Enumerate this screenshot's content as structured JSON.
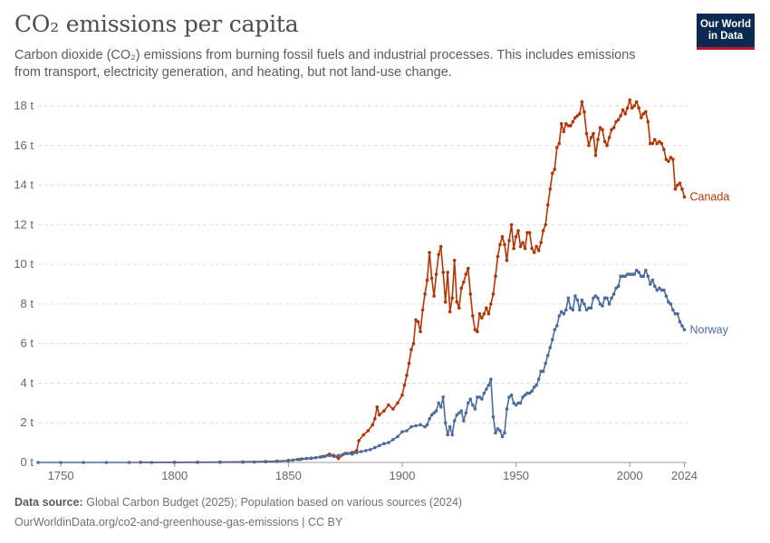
{
  "header": {
    "title": "CO₂ emissions per capita",
    "subtitle": "Carbon dioxide (CO₂) emissions from burning fossil fuels and industrial processes. This includes emissions from transport, electricity generation, and heating, but not land-use change.",
    "logo_line1": "Our World",
    "logo_line2": "in Data"
  },
  "footer": {
    "source_label": "Data source:",
    "source_text": "Global Carbon Budget (2025); Population based on various sources (2024)",
    "url": "OurWorldinData.org/co2-and-greenhouse-gas-emissions | CC BY"
  },
  "colors": {
    "canada": "#b13507",
    "norway": "#4c6a9c",
    "grid": "#dddddd",
    "axis": "#666666"
  },
  "chart_data": {
    "type": "line",
    "xlim": [
      1740,
      2025
    ],
    "ylim": [
      0,
      18
    ],
    "x_ticks": [
      1750,
      1800,
      1850,
      1900,
      1950,
      2000,
      2024
    ],
    "y_ticks": [
      0,
      2,
      4,
      6,
      8,
      10,
      12,
      14,
      16,
      18
    ],
    "y_tick_labels": [
      "0 t",
      "2 t",
      "4 t",
      "6 t",
      "8 t",
      "10 t",
      "12 t",
      "14 t",
      "16 t",
      "18 t"
    ],
    "grid": "horizontal dashed",
    "series": [
      {
        "name": "Canada",
        "color": "#b13507",
        "points": [
          [
            1785,
            0.01
          ],
          [
            1800,
            0.01
          ],
          [
            1810,
            0.015
          ],
          [
            1820,
            0.02
          ],
          [
            1830,
            0.03
          ],
          [
            1840,
            0.05
          ],
          [
            1845,
            0.07
          ],
          [
            1850,
            0.1
          ],
          [
            1855,
            0.15
          ],
          [
            1860,
            0.2
          ],
          [
            1865,
            0.3
          ],
          [
            1868,
            0.42
          ],
          [
            1870,
            0.35
          ],
          [
            1872,
            0.2
          ],
          [
            1875,
            0.45
          ],
          [
            1878,
            0.5
          ],
          [
            1880,
            0.6
          ],
          [
            1881,
            1.1
          ],
          [
            1883,
            1.4
          ],
          [
            1885,
            1.6
          ],
          [
            1887,
            1.9
          ],
          [
            1888,
            2.2
          ],
          [
            1889,
            2.8
          ],
          [
            1890,
            2.4
          ],
          [
            1892,
            2.6
          ],
          [
            1894,
            2.9
          ],
          [
            1896,
            2.7
          ],
          [
            1898,
            3.0
          ],
          [
            1900,
            3.4
          ],
          [
            1901,
            3.9
          ],
          [
            1902,
            4.4
          ],
          [
            1903,
            5.0
          ],
          [
            1904,
            5.7
          ],
          [
            1905,
            6.0
          ],
          [
            1906,
            7.2
          ],
          [
            1907,
            7.1
          ],
          [
            1908,
            6.6
          ],
          [
            1909,
            7.7
          ],
          [
            1910,
            8.5
          ],
          [
            1911,
            9.2
          ],
          [
            1912,
            10.6
          ],
          [
            1913,
            9.3
          ],
          [
            1914,
            8.4
          ],
          [
            1915,
            9.5
          ],
          [
            1916,
            10.5
          ],
          [
            1917,
            10.9
          ],
          [
            1918,
            9.6
          ],
          [
            1919,
            8.1
          ],
          [
            1920,
            9.6
          ],
          [
            1921,
            7.6
          ],
          [
            1922,
            8.3
          ],
          [
            1923,
            10.2
          ],
          [
            1924,
            8.1
          ],
          [
            1925,
            7.8
          ],
          [
            1926,
            8.8
          ],
          [
            1927,
            9.1
          ],
          [
            1928,
            9.5
          ],
          [
            1929,
            9.8
          ],
          [
            1930,
            8.5
          ],
          [
            1931,
            7.4
          ],
          [
            1932,
            6.7
          ],
          [
            1933,
            6.6
          ],
          [
            1934,
            7.5
          ],
          [
            1935,
            7.3
          ],
          [
            1936,
            7.5
          ],
          [
            1937,
            7.8
          ],
          [
            1938,
            7.5
          ],
          [
            1939,
            8.0
          ],
          [
            1940,
            8.5
          ],
          [
            1941,
            9.4
          ],
          [
            1942,
            10.4
          ],
          [
            1943,
            11.0
          ],
          [
            1944,
            11.4
          ],
          [
            1945,
            11.0
          ],
          [
            1946,
            10.2
          ],
          [
            1947,
            11.2
          ],
          [
            1948,
            12.0
          ],
          [
            1949,
            10.8
          ],
          [
            1950,
            11.4
          ],
          [
            1951,
            11.7
          ],
          [
            1952,
            10.9
          ],
          [
            1953,
            11.1
          ],
          [
            1954,
            10.8
          ],
          [
            1955,
            11.6
          ],
          [
            1956,
            11.6
          ],
          [
            1957,
            10.8
          ],
          [
            1958,
            10.6
          ],
          [
            1959,
            10.9
          ],
          [
            1960,
            10.7
          ],
          [
            1961,
            11.1
          ],
          [
            1962,
            11.7
          ],
          [
            1963,
            12.0
          ],
          [
            1964,
            13.0
          ],
          [
            1965,
            13.8
          ],
          [
            1966,
            14.6
          ],
          [
            1967,
            14.8
          ],
          [
            1968,
            15.9
          ],
          [
            1969,
            16.1
          ],
          [
            1970,
            17.1
          ],
          [
            1971,
            16.7
          ],
          [
            1972,
            17.1
          ],
          [
            1973,
            17.0
          ],
          [
            1974,
            17.0
          ],
          [
            1975,
            17.2
          ],
          [
            1976,
            17.4
          ],
          [
            1977,
            17.5
          ],
          [
            1978,
            17.6
          ],
          [
            1979,
            18.2
          ],
          [
            1980,
            17.7
          ],
          [
            1981,
            16.6
          ],
          [
            1982,
            16.0
          ],
          [
            1983,
            16.4
          ],
          [
            1984,
            16.6
          ],
          [
            1985,
            15.5
          ],
          [
            1986,
            16.3
          ],
          [
            1987,
            16.9
          ],
          [
            1988,
            16.8
          ],
          [
            1989,
            16.2
          ],
          [
            1990,
            16.0
          ],
          [
            1991,
            16.4
          ],
          [
            1992,
            16.8
          ],
          [
            1993,
            16.9
          ],
          [
            1994,
            17.2
          ],
          [
            1995,
            17.3
          ],
          [
            1996,
            17.5
          ],
          [
            1997,
            17.8
          ],
          [
            1998,
            17.6
          ],
          [
            1999,
            17.9
          ],
          [
            2000,
            18.3
          ],
          [
            2001,
            17.9
          ],
          [
            2002,
            18.0
          ],
          [
            2003,
            18.2
          ],
          [
            2004,
            17.9
          ],
          [
            2005,
            17.4
          ],
          [
            2006,
            17.6
          ],
          [
            2007,
            17.7
          ],
          [
            2008,
            17.2
          ],
          [
            2009,
            16.1
          ],
          [
            2010,
            16.1
          ],
          [
            2011,
            16.3
          ],
          [
            2012,
            16.1
          ],
          [
            2013,
            16.2
          ],
          [
            2014,
            16.1
          ],
          [
            2015,
            15.8
          ],
          [
            2016,
            15.3
          ],
          [
            2017,
            15.2
          ],
          [
            2018,
            15.4
          ],
          [
            2019,
            15.3
          ],
          [
            2020,
            13.8
          ],
          [
            2021,
            14.0
          ],
          [
            2022,
            14.1
          ],
          [
            2023,
            13.8
          ],
          [
            2024,
            13.4
          ]
        ]
      },
      {
        "name": "Norway",
        "color": "#4c6a9c",
        "points": [
          [
            1740,
            0.0
          ],
          [
            1750,
            0.0
          ],
          [
            1760,
            0.0
          ],
          [
            1770,
            0.0
          ],
          [
            1780,
            0.0
          ],
          [
            1790,
            0.0
          ],
          [
            1800,
            0.0
          ],
          [
            1810,
            0.0
          ],
          [
            1820,
            0.01
          ],
          [
            1830,
            0.01
          ],
          [
            1835,
            0.02
          ],
          [
            1840,
            0.03
          ],
          [
            1845,
            0.05
          ],
          [
            1850,
            0.08
          ],
          [
            1852,
            0.12
          ],
          [
            1854,
            0.15
          ],
          [
            1856,
            0.18
          ],
          [
            1858,
            0.2
          ],
          [
            1860,
            0.22
          ],
          [
            1862,
            0.24
          ],
          [
            1864,
            0.27
          ],
          [
            1866,
            0.3
          ],
          [
            1868,
            0.35
          ],
          [
            1870,
            0.3
          ],
          [
            1872,
            0.35
          ],
          [
            1874,
            0.4
          ],
          [
            1876,
            0.45
          ],
          [
            1878,
            0.42
          ],
          [
            1880,
            0.5
          ],
          [
            1882,
            0.55
          ],
          [
            1884,
            0.6
          ],
          [
            1886,
            0.65
          ],
          [
            1888,
            0.75
          ],
          [
            1890,
            0.85
          ],
          [
            1892,
            0.95
          ],
          [
            1894,
            1.0
          ],
          [
            1896,
            1.15
          ],
          [
            1898,
            1.3
          ],
          [
            1900,
            1.55
          ],
          [
            1902,
            1.6
          ],
          [
            1904,
            1.8
          ],
          [
            1906,
            1.85
          ],
          [
            1908,
            1.9
          ],
          [
            1910,
            1.8
          ],
          [
            1911,
            1.9
          ],
          [
            1912,
            2.2
          ],
          [
            1913,
            2.4
          ],
          [
            1914,
            2.5
          ],
          [
            1915,
            2.6
          ],
          [
            1916,
            3.0
          ],
          [
            1917,
            2.8
          ],
          [
            1918,
            3.3
          ],
          [
            1919,
            2.0
          ],
          [
            1920,
            1.4
          ],
          [
            1921,
            1.8
          ],
          [
            1922,
            1.4
          ],
          [
            1923,
            2.1
          ],
          [
            1924,
            2.4
          ],
          [
            1925,
            2.5
          ],
          [
            1926,
            2.6
          ],
          [
            1927,
            2.1
          ],
          [
            1928,
            2.5
          ],
          [
            1929,
            3.0
          ],
          [
            1930,
            3.2
          ],
          [
            1931,
            2.9
          ],
          [
            1932,
            2.7
          ],
          [
            1933,
            3.3
          ],
          [
            1934,
            3.3
          ],
          [
            1935,
            3.2
          ],
          [
            1936,
            3.5
          ],
          [
            1937,
            3.7
          ],
          [
            1938,
            3.9
          ],
          [
            1939,
            4.2
          ],
          [
            1940,
            2.3
          ],
          [
            1941,
            1.5
          ],
          [
            1942,
            1.7
          ],
          [
            1943,
            1.6
          ],
          [
            1944,
            1.3
          ],
          [
            1945,
            1.5
          ],
          [
            1946,
            2.7
          ],
          [
            1947,
            3.3
          ],
          [
            1948,
            3.4
          ],
          [
            1949,
            3.0
          ],
          [
            1950,
            2.9
          ],
          [
            1951,
            3.0
          ],
          [
            1952,
            3.0
          ],
          [
            1953,
            3.3
          ],
          [
            1954,
            3.4
          ],
          [
            1955,
            3.5
          ],
          [
            1956,
            3.5
          ],
          [
            1957,
            3.6
          ],
          [
            1958,
            3.8
          ],
          [
            1959,
            3.9
          ],
          [
            1960,
            4.2
          ],
          [
            1961,
            4.6
          ],
          [
            1962,
            4.6
          ],
          [
            1963,
            5.0
          ],
          [
            1964,
            5.4
          ],
          [
            1965,
            5.8
          ],
          [
            1966,
            6.2
          ],
          [
            1967,
            6.7
          ],
          [
            1968,
            6.9
          ],
          [
            1969,
            7.4
          ],
          [
            1970,
            7.6
          ],
          [
            1971,
            7.5
          ],
          [
            1972,
            7.7
          ],
          [
            1973,
            8.3
          ],
          [
            1974,
            7.8
          ],
          [
            1975,
            7.7
          ],
          [
            1976,
            8.4
          ],
          [
            1977,
            8.2
          ],
          [
            1978,
            7.7
          ],
          [
            1979,
            8.2
          ],
          [
            1980,
            8.0
          ],
          [
            1981,
            7.7
          ],
          [
            1982,
            7.8
          ],
          [
            1983,
            7.8
          ],
          [
            1984,
            8.3
          ],
          [
            1985,
            8.4
          ],
          [
            1986,
            8.3
          ],
          [
            1987,
            8.0
          ],
          [
            1988,
            7.9
          ],
          [
            1989,
            8.3
          ],
          [
            1990,
            8.3
          ],
          [
            1991,
            8.0
          ],
          [
            1992,
            8.3
          ],
          [
            1993,
            8.5
          ],
          [
            1994,
            8.8
          ],
          [
            1995,
            8.9
          ],
          [
            1996,
            9.4
          ],
          [
            1997,
            9.4
          ],
          [
            1998,
            9.4
          ],
          [
            1999,
            9.5
          ],
          [
            2000,
            9.5
          ],
          [
            2001,
            9.5
          ],
          [
            2002,
            9.5
          ],
          [
            2003,
            9.7
          ],
          [
            2004,
            9.6
          ],
          [
            2005,
            9.4
          ],
          [
            2006,
            9.4
          ],
          [
            2007,
            9.7
          ],
          [
            2008,
            9.4
          ],
          [
            2009,
            9.0
          ],
          [
            2010,
            9.2
          ],
          [
            2011,
            8.9
          ],
          [
            2012,
            8.7
          ],
          [
            2013,
            8.8
          ],
          [
            2014,
            8.7
          ],
          [
            2015,
            8.7
          ],
          [
            2016,
            8.4
          ],
          [
            2017,
            8.1
          ],
          [
            2018,
            8.0
          ],
          [
            2019,
            7.7
          ],
          [
            2020,
            7.5
          ],
          [
            2021,
            7.5
          ],
          [
            2022,
            7.1
          ],
          [
            2023,
            6.9
          ],
          [
            2024,
            6.7
          ]
        ]
      }
    ]
  }
}
